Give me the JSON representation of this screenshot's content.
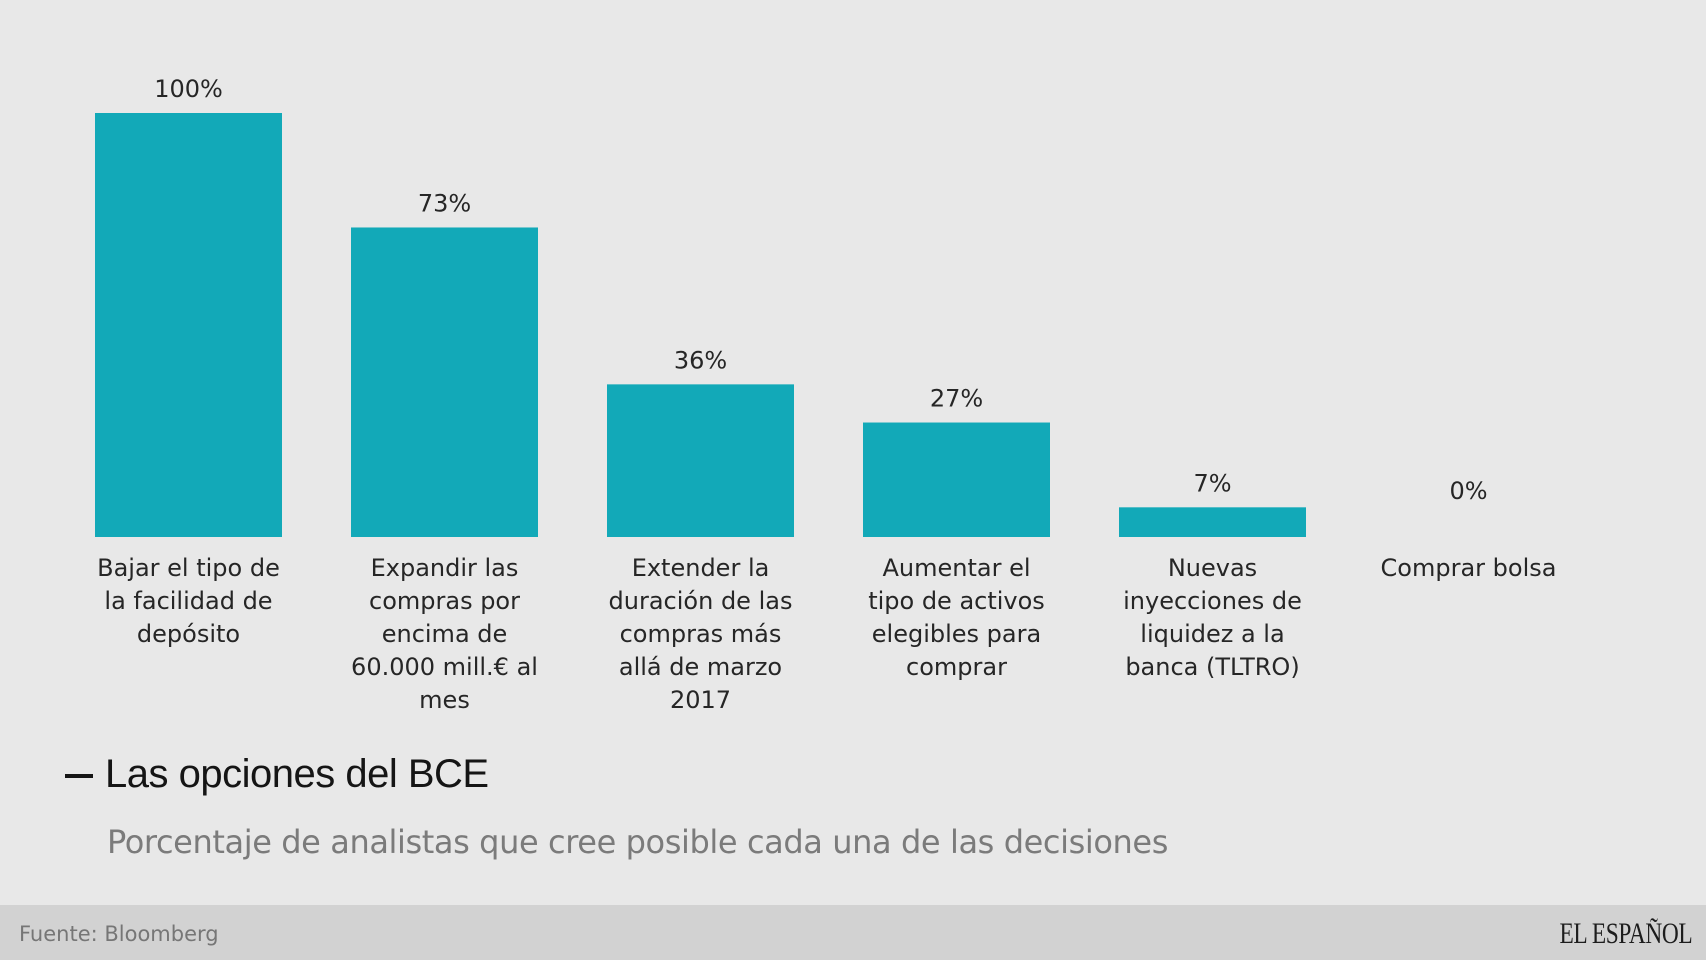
{
  "chart_data": {
    "type": "bar",
    "title": "Las opciones del BCE",
    "subtitle": "Porcentaje de analistas que cree posible cada una de las decisiones",
    "categories": [
      [
        "Bajar el tipo de",
        "la facilidad de",
        "depósito"
      ],
      [
        "Expandir las",
        "compras por",
        "encima de",
        "60.000 mill.€ al",
        "mes"
      ],
      [
        "Extender la",
        "duración de las",
        "compras más",
        "allá de marzo",
        "2017"
      ],
      [
        "Aumentar el",
        "tipo de activos",
        "elegibles para",
        "comprar"
      ],
      [
        "Nuevas",
        "inyecciones de",
        "liquidez a la",
        "banca (TLTRO)"
      ],
      [
        "Comprar bolsa"
      ]
    ],
    "values": [
      100,
      73,
      36,
      27,
      7,
      0
    ],
    "value_labels": [
      "100%",
      "73%",
      "36%",
      "27%",
      "7%",
      "0%"
    ],
    "unit": "%",
    "xlabel": "",
    "ylabel": "",
    "ylim": [
      0,
      100
    ],
    "grid": false,
    "legend": "none",
    "bar_color": "#12a9b8"
  },
  "header": {
    "title": "Las opciones del BCE",
    "subtitle": "Porcentaje de analistas que cree posible cada una de las decisiones"
  },
  "footer": {
    "source": "Fuente: Bloomberg",
    "logo": "EL ESPAÑOL"
  }
}
